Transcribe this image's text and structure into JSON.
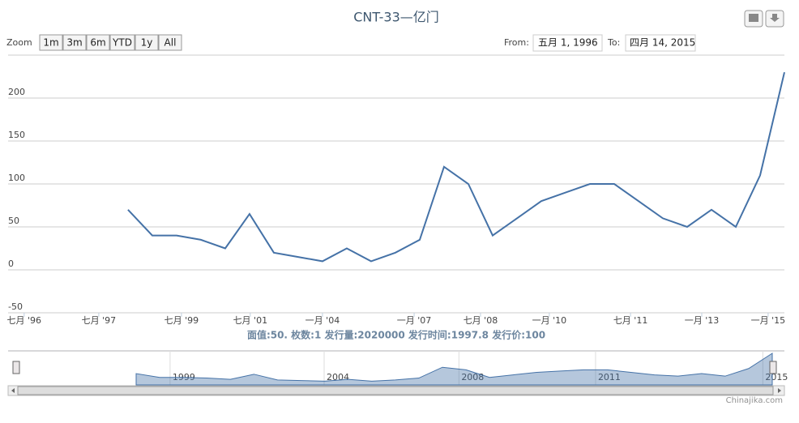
{
  "chart_data": {
    "type": "line",
    "title": "CNT-33—亿门",
    "subtitle": "面值:50. 枚数:1 发行量:2020000 发行时间:1997.8 发行价:100",
    "zoom_label": "Zoom",
    "buttons": [
      "1m",
      "3m",
      "6m",
      "YTD",
      "1y",
      "All"
    ],
    "from_label": "From:",
    "from": "五月 1, 1996",
    "to_label": "To:",
    "to": "四月 14, 2015",
    "credit": "Chinajika.com",
    "x": [
      0,
      1,
      2,
      3,
      4,
      5,
      6,
      7,
      8,
      9,
      10,
      11,
      12,
      13,
      14,
      15,
      16,
      17,
      18,
      19,
      20,
      21,
      22,
      23,
      24,
      25,
      26,
      27
    ],
    "series": [
      {
        "color": "#4572a7",
        "values": [
          70,
          40,
          40,
          35,
          25,
          65,
          20,
          15,
          10,
          25,
          10,
          20,
          35,
          120,
          100,
          40,
          60,
          80,
          90,
          100,
          100,
          80,
          60,
          50,
          70,
          50,
          110,
          230
        ]
      }
    ],
    "xlim": [
      -4.93,
      27
    ],
    "xticks": [
      {
        "value": -4.27,
        "label": "七月 '96"
      },
      {
        "value": -1.2,
        "label": "七月 '97"
      },
      {
        "value": 2.2,
        "label": "七月 '99"
      },
      {
        "value": 5.03,
        "label": "七月 '01"
      },
      {
        "value": 8,
        "label": "一月 '04"
      },
      {
        "value": 11.77,
        "label": "一月 '07"
      },
      {
        "value": 14.5,
        "label": "七月 '08"
      },
      {
        "value": 17.33,
        "label": "一月 '10"
      },
      {
        "value": 20.67,
        "label": "七月 '11"
      },
      {
        "value": 23.6,
        "label": "一月 '13"
      },
      {
        "value": 26.33,
        "label": "一月 '15"
      }
    ],
    "ylim": [
      -50,
      250
    ],
    "yticks": [
      -50,
      0,
      50,
      100,
      150,
      200
    ],
    "grid": true,
    "navigator_xticks": [
      {
        "value": 1.44,
        "label": "1999"
      },
      {
        "value": 7.98,
        "label": "2004"
      },
      {
        "value": 13.7,
        "label": "2008"
      },
      {
        "value": 19.5,
        "label": "2011"
      },
      {
        "value": 26.6,
        "label": "2015"
      }
    ]
  }
}
